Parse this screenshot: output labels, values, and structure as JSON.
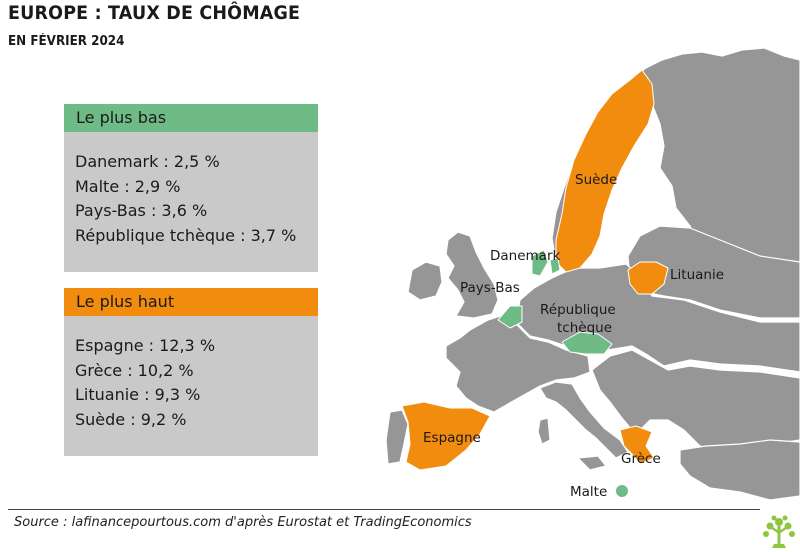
{
  "header": {
    "title": "EUROPE : TAUX DE CHÔMAGE",
    "subtitle": "EN FÉVRIER 2024"
  },
  "lowest": {
    "heading": "Le plus bas",
    "color": "#6fbb86",
    "items": [
      "Danemark : 2,5 %",
      "Malte : 2,9 %",
      "Pays-Bas : 3,6 %",
      "République tchèque : 3,7 %"
    ]
  },
  "highest": {
    "heading": "Le plus haut",
    "color": "#f28c0f",
    "items": [
      "Espagne : 12,3 %",
      "Grèce : 10,2 %",
      "Lituanie : 9,3 %",
      "Suède : 9,2 %"
    ]
  },
  "map": {
    "base_color": "#969696",
    "border_color": "#ffffff",
    "labels": {
      "suede": "Suède",
      "danemark": "Danemark",
      "pays_bas": "Pays-Bas",
      "rep_tcheque_1": "République",
      "rep_tcheque_2": "tchèque",
      "lituanie": "Lituanie",
      "espagne": "Espagne",
      "grece": "Grèce",
      "malte": "Malte"
    }
  },
  "footer": {
    "source": "Source : lafinancepourtous.com d'après Eurostat et TradingEconomics",
    "logo_icon": "tree-logo-icon"
  }
}
